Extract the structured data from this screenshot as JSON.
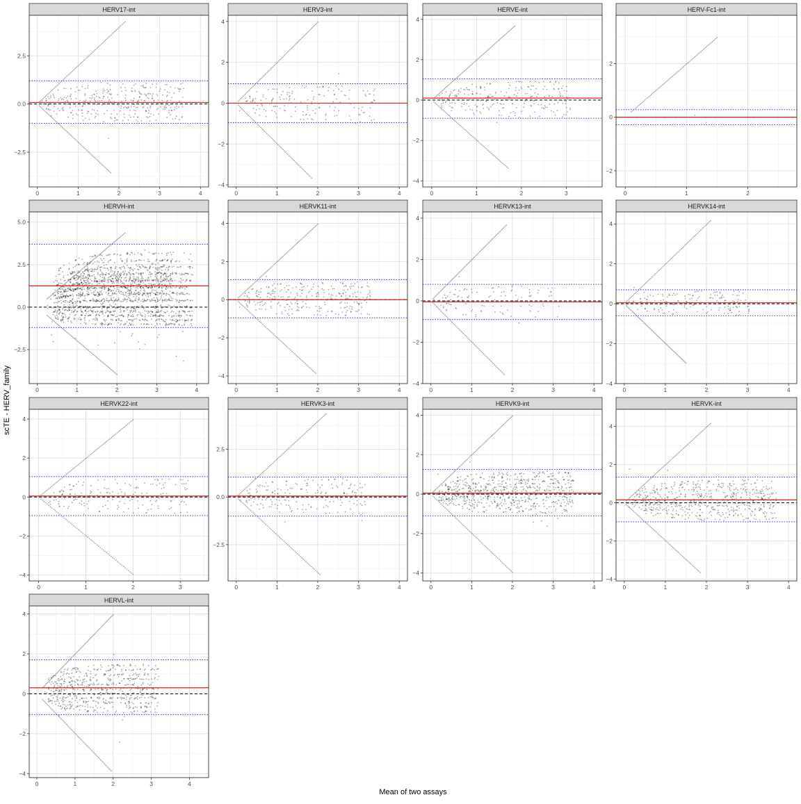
{
  "chart_data": {
    "type": "scatter",
    "layout": "facet-grid",
    "xlabel": "Mean of two assays",
    "ylabel": "scTE - HERV_family",
    "panels": [
      {
        "title": "HERV17-int",
        "xlim": [
          -0.2,
          4.2
        ],
        "ylim": [
          -4.3,
          4.6
        ],
        "xticks": [
          0,
          1,
          2,
          3,
          4
        ],
        "yticks": [
          -2.5,
          0.0,
          2.5
        ],
        "ytick_labels": [
          "-2.5",
          "0.0",
          "2.5"
        ],
        "mean_diff": 0.08,
        "loa_upper": 1.2,
        "loa_lower": -1.0,
        "x_min": 0.05,
        "x_max": 3.6,
        "upper_diag_end": 4.3,
        "lower_diag_end": -3.6,
        "n_arcs_up": 6,
        "n_arcs_down": 5,
        "density": 30
      },
      {
        "title": "HERV3-int",
        "xlim": [
          -0.2,
          4.2
        ],
        "ylim": [
          -4.1,
          4.3
        ],
        "xticks": [
          0,
          1,
          2,
          3,
          4
        ],
        "yticks": [
          -4,
          -2,
          0,
          2,
          4
        ],
        "ytick_labels": [
          "-4",
          "-2",
          "0",
          "2",
          "4"
        ],
        "mean_diff": 0.0,
        "loa_upper": 0.95,
        "loa_lower": -0.95,
        "x_min": 0.05,
        "x_max": 3.4,
        "upper_diag_end": 4.0,
        "lower_diag_end": -3.7,
        "n_arcs_up": 4,
        "n_arcs_down": 4,
        "density": 18
      },
      {
        "title": "HERVE-int",
        "xlim": [
          -0.2,
          3.8
        ],
        "ylim": [
          -4.3,
          4.2
        ],
        "xticks": [
          0,
          1,
          2,
          3
        ],
        "yticks": [
          -4,
          -2,
          0,
          2,
          4
        ],
        "ytick_labels": [
          "-4",
          "-2",
          "0",
          "2",
          "4"
        ],
        "mean_diff": 0.1,
        "loa_upper": 1.05,
        "loa_lower": -0.9,
        "x_min": 0.05,
        "x_max": 3.1,
        "upper_diag_end": 3.7,
        "lower_diag_end": -3.4,
        "n_arcs_up": 5,
        "n_arcs_down": 4,
        "density": 24
      },
      {
        "title": "HERV-Fc1-int",
        "xlim": [
          -0.15,
          2.8
        ],
        "ylim": [
          -2.6,
          3.8
        ],
        "xticks": [
          0,
          1,
          2
        ],
        "yticks": [
          -2,
          0,
          2
        ],
        "ytick_labels": [
          "-2",
          "0",
          "2"
        ],
        "mean_diff": 0.0,
        "loa_upper": 0.28,
        "loa_lower": -0.28,
        "x_min": 0.1,
        "x_max": 1.5,
        "upper_diag_end": 3.0,
        "lower_diag_end": 0,
        "n_arcs_up": 0,
        "n_arcs_down": 0,
        "density": 2
      },
      {
        "title": "HERVH-int",
        "xlim": [
          -0.2,
          4.3
        ],
        "ylim": [
          -4.5,
          5.6
        ],
        "xticks": [
          0,
          1,
          2,
          3,
          4
        ],
        "yticks": [
          -2.5,
          0.0,
          2.5,
          5.0
        ],
        "ytick_labels": [
          "-2.5",
          "0.0",
          "2.5",
          "5.0"
        ],
        "mean_diff": 1.25,
        "loa_upper": 3.7,
        "loa_lower": -1.2,
        "x_min": 0.25,
        "x_max": 3.9,
        "upper_diag_end": 5.0,
        "lower_diag_end": -4.0,
        "n_arcs_up": 8,
        "n_arcs_down": 4,
        "density": 120,
        "dense_cloud": true
      },
      {
        "title": "HERVK11-int",
        "xlim": [
          -0.2,
          4.2
        ],
        "ylim": [
          -4.4,
          4.6
        ],
        "xticks": [
          0,
          1,
          2,
          3,
          4
        ],
        "yticks": [
          -4,
          -2,
          0,
          2,
          4
        ],
        "ytick_labels": [
          "-4",
          "-2",
          "0",
          "2",
          "4"
        ],
        "mean_diff": 0.0,
        "loa_upper": 1.05,
        "loa_lower": -0.95,
        "x_min": 0.05,
        "x_max": 3.3,
        "upper_diag_end": 4.0,
        "lower_diag_end": -3.9,
        "n_arcs_up": 5,
        "n_arcs_down": 4,
        "density": 28
      },
      {
        "title": "HERVK13-int",
        "xlim": [
          -0.2,
          4.2
        ],
        "ylim": [
          -4.0,
          4.3
        ],
        "xticks": [
          0,
          1,
          2,
          3,
          4
        ],
        "yticks": [
          -4,
          -2,
          0,
          2,
          4
        ],
        "ytick_labels": [
          "-4",
          "-2",
          "0",
          "2",
          "4"
        ],
        "mean_diff": -0.05,
        "loa_upper": 0.8,
        "loa_lower": -0.9,
        "x_min": 0.05,
        "x_max": 3.2,
        "upper_diag_end": 3.7,
        "lower_diag_end": -3.6,
        "n_arcs_up": 3,
        "n_arcs_down": 3,
        "density": 14
      },
      {
        "title": "HERVK14-int",
        "xlim": [
          -0.2,
          4.2
        ],
        "ylim": [
          -4.0,
          4.6
        ],
        "xticks": [
          0,
          1,
          2,
          3,
          4
        ],
        "yticks": [
          -4,
          -2,
          0,
          2,
          4
        ],
        "ytick_labels": [
          "-4",
          "-2",
          "0",
          "2",
          "4"
        ],
        "mean_diff": 0.05,
        "loa_upper": 0.7,
        "loa_lower": -0.6,
        "x_min": 0.05,
        "x_max": 3.1,
        "upper_diag_end": 4.2,
        "lower_diag_end": -3.0,
        "n_arcs_up": 4,
        "n_arcs_down": 3,
        "density": 18
      },
      {
        "title": "HERVK22-int",
        "xlim": [
          -0.2,
          3.6
        ],
        "ylim": [
          -4.3,
          4.5
        ],
        "xticks": [
          0,
          1,
          2,
          3
        ],
        "yticks": [
          -4,
          -2,
          0,
          2,
          4
        ],
        "ytick_labels": [
          "-4",
          "-2",
          "0",
          "2",
          "4"
        ],
        "mean_diff": 0.05,
        "loa_upper": 1.05,
        "loa_lower": -0.95,
        "x_min": 0.05,
        "x_max": 3.2,
        "upper_diag_end": 4.0,
        "lower_diag_end": -4.0,
        "n_arcs_up": 4,
        "n_arcs_down": 4,
        "density": 18
      },
      {
        "title": "HERVK3-int",
        "xlim": [
          -0.2,
          4.2
        ],
        "ylim": [
          -4.4,
          4.6
        ],
        "xticks": [
          0,
          1,
          2,
          3,
          4
        ],
        "yticks": [
          -2.5,
          0.0,
          2.5
        ],
        "ytick_labels": [
          "-2.5",
          "0.0",
          "2.5"
        ],
        "mean_diff": 0.05,
        "loa_upper": 1.05,
        "loa_lower": -1.0,
        "x_min": 0.05,
        "x_max": 3.2,
        "upper_diag_end": 4.4,
        "lower_diag_end": -4.1,
        "n_arcs_up": 4,
        "n_arcs_down": 4,
        "density": 20
      },
      {
        "title": "HERVK9-int",
        "xlim": [
          -0.2,
          4.2
        ],
        "ylim": [
          -4.4,
          4.3
        ],
        "xticks": [
          0,
          1,
          2,
          3,
          4
        ],
        "yticks": [
          -4,
          -2,
          0,
          2,
          4
        ],
        "ytick_labels": [
          "-4",
          "-2",
          "0",
          "2",
          "4"
        ],
        "mean_diff": 0.05,
        "loa_upper": 1.25,
        "loa_lower": -1.1,
        "x_min": 0.05,
        "x_max": 3.5,
        "upper_diag_end": 4.0,
        "lower_diag_end": -4.0,
        "n_arcs_up": 6,
        "n_arcs_down": 6,
        "density": 60
      },
      {
        "title": "HERVK-int",
        "xlim": [
          -0.2,
          4.2
        ],
        "ylim": [
          -4.1,
          4.9
        ],
        "xticks": [
          0,
          1,
          2,
          3,
          4
        ],
        "yticks": [
          -4,
          -2,
          0,
          2,
          4
        ],
        "ytick_labels": [
          "-4",
          "-2",
          "0",
          "2",
          "4"
        ],
        "mean_diff": 0.15,
        "loa_upper": 1.35,
        "loa_lower": -1.0,
        "x_min": 0.05,
        "x_max": 3.7,
        "upper_diag_end": 4.2,
        "lower_diag_end": -3.7,
        "n_arcs_up": 7,
        "n_arcs_down": 5,
        "density": 50
      },
      {
        "title": "HERVL-int",
        "xlim": [
          -0.2,
          4.5
        ],
        "ylim": [
          -4.2,
          4.4
        ],
        "xticks": [
          0,
          1,
          2,
          3,
          4
        ],
        "yticks": [
          -4,
          -2,
          0,
          2,
          4
        ],
        "ytick_labels": [
          "-4",
          "-2",
          "0",
          "2",
          "4"
        ],
        "mean_diff": 0.3,
        "loa_upper": 1.7,
        "loa_lower": -1.05,
        "x_min": 0.15,
        "x_max": 3.2,
        "upper_diag_end": 4.0,
        "lower_diag_end": -3.9,
        "n_arcs_up": 6,
        "n_arcs_down": 4,
        "density": 60
      }
    ],
    "line_styles": {
      "mean_difference": "solid red",
      "limits_of_agreement": "dotted blue",
      "zero_reference": "dashed black"
    },
    "grid": true,
    "colors": {
      "points": "#000000",
      "mean_line": "#e31a1c",
      "loa_line": "#1f1fd0",
      "zero_line": "#000000",
      "strip_fill": "#d9d9d9",
      "grid": "#ebebeb"
    }
  }
}
